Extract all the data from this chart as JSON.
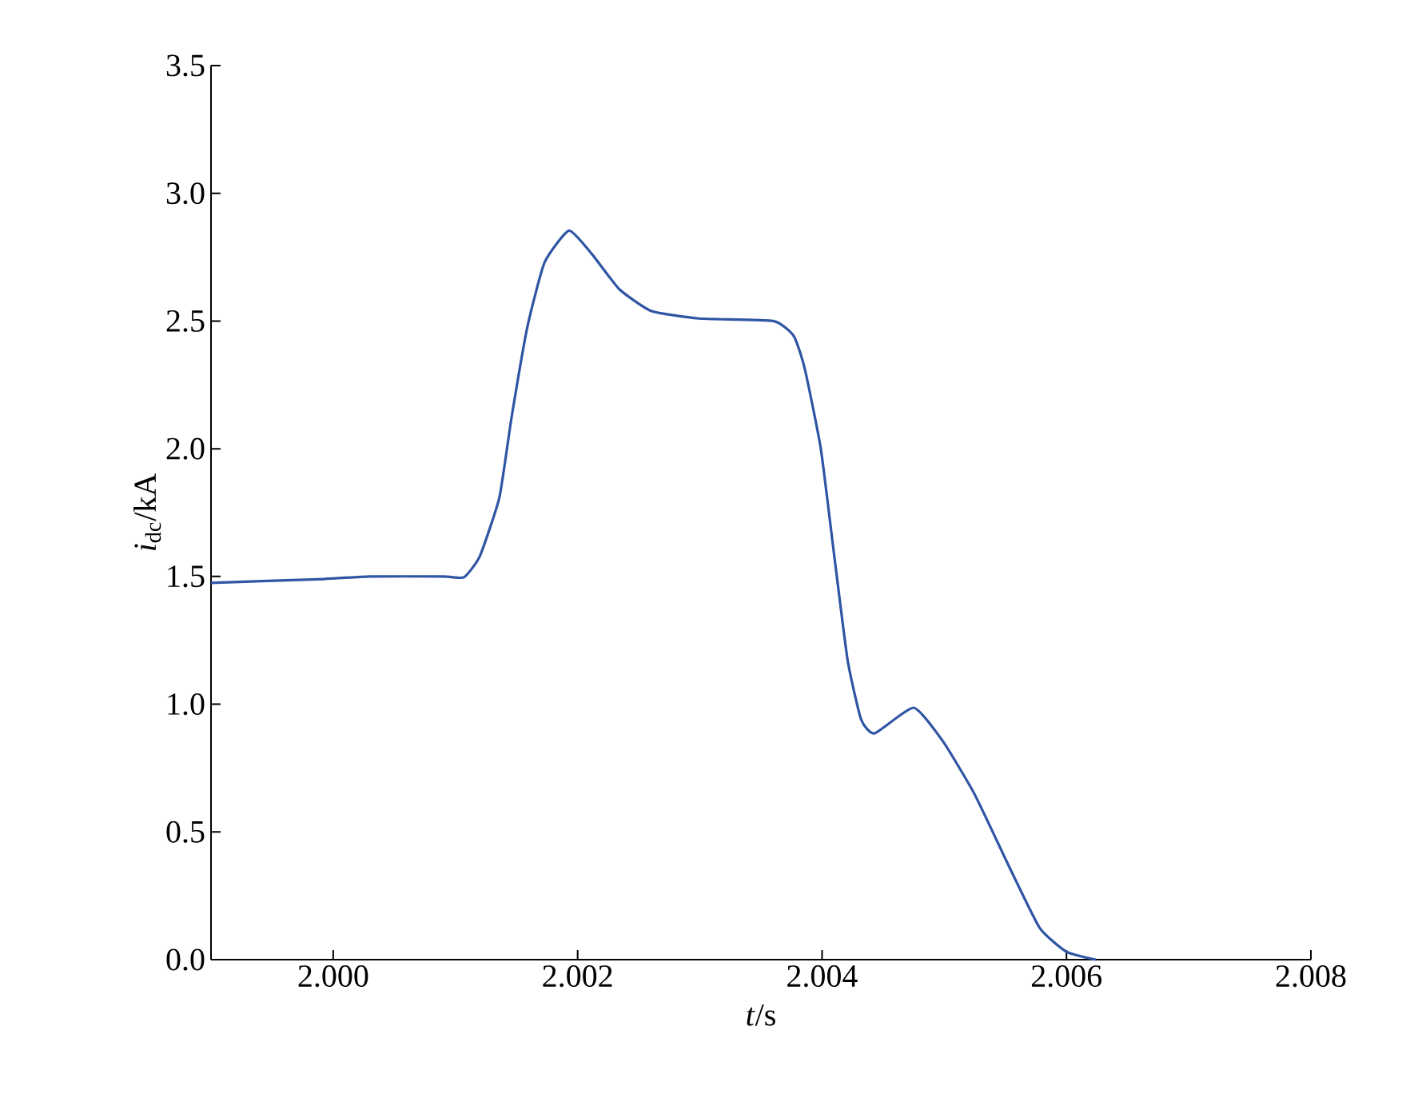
{
  "chart_data": {
    "type": "line",
    "xlabel": "*t*/s",
    "ylabel": "*i*$_{dc}$/kA",
    "xlim": [
      1.999,
      2.008
    ],
    "xticks": [
      {
        "value": 2.0,
        "label": "2.000"
      },
      {
        "value": 2.002,
        "label": "2.002"
      },
      {
        "value": 2.004,
        "label": "2.004"
      },
      {
        "value": 2.006,
        "label": "2.006"
      },
      {
        "value": 2.008,
        "label": "2.008"
      }
    ],
    "ylim": [
      0,
      3.5
    ],
    "yticks": [
      {
        "value": 0,
        "label": "0.0"
      },
      {
        "value": 0.5,
        "label": "0.5"
      },
      {
        "value": 1.0,
        "label": "1.0"
      },
      {
        "value": 1.5,
        "label": "1.5"
      },
      {
        "value": 2.0,
        "label": "2.0"
      },
      {
        "value": 2.5,
        "label": "2.5"
      },
      {
        "value": 3.0,
        "label": "3.0"
      },
      {
        "value": 3.5,
        "label": "3.5"
      }
    ],
    "series": [
      {
        "color": "#2f55a4",
        "x": [
          1.999,
          1.99992,
          2.0003,
          2.0009,
          2.00107,
          2.0012,
          2.00136,
          2.00146,
          2.00159,
          2.00173,
          2.00193,
          2.00212,
          2.00234,
          2.0026,
          2.00299,
          2.0036,
          2.00377,
          2.00386,
          2.00399,
          2.0041,
          2.00421,
          2.00432,
          2.00443,
          2.00475,
          2.00499,
          2.00525,
          2.00552,
          2.00578,
          2.006,
          2.00624
        ],
        "values": [
          1.475,
          1.49,
          1.5,
          1.5,
          1.497,
          1.58,
          1.81,
          2.125,
          2.48,
          2.73,
          2.854,
          2.76,
          2.625,
          2.54,
          2.51,
          2.5,
          2.44,
          2.31,
          2.0,
          1.58,
          1.17,
          0.94,
          0.886,
          0.986,
          0.854,
          0.646,
          0.375,
          0.125,
          0.031,
          0.0
        ]
      }
    ]
  }
}
